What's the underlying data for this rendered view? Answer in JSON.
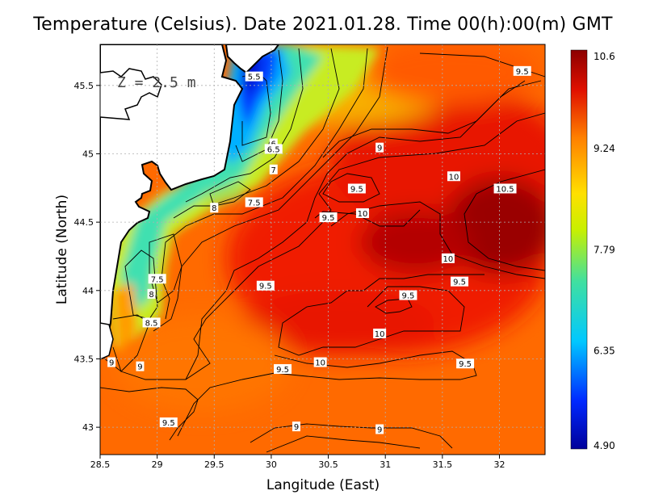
{
  "title": "Temperature (Celsius). Date 2021.01.28. Time 00(h):00(m) GMT",
  "depth_label": "Z = 2.5 m",
  "x_axis_title": "Langitude (East)",
  "y_axis_title": "Latitude (North)",
  "x_ticks": [
    "28.5",
    "29",
    "29.5",
    "30",
    "30.5",
    "31",
    "31.5",
    "32"
  ],
  "y_ticks": [
    "43",
    "43.5",
    "44",
    "44.5",
    "45",
    "45.5"
  ],
  "colorbar": {
    "labels": [
      "10.6",
      "9.24",
      "7.79",
      "6.35",
      "4.90"
    ],
    "min": 4.9,
    "max": 10.6
  },
  "contour_labels": [
    {
      "text": "5.5",
      "lon": 29.85,
      "lat": 45.56
    },
    {
      "text": "6",
      "lon": 30.02,
      "lat": 45.07
    },
    {
      "text": "6.5",
      "lon": 30.02,
      "lat": 45.03
    },
    {
      "text": "7",
      "lon": 30.02,
      "lat": 44.88
    },
    {
      "text": "7.5",
      "lon": 29.85,
      "lat": 44.64
    },
    {
      "text": "8",
      "lon": 29.5,
      "lat": 44.6
    },
    {
      "text": "9",
      "lon": 30.95,
      "lat": 45.04
    },
    {
      "text": "9.5",
      "lon": 30.75,
      "lat": 44.74
    },
    {
      "text": "10",
      "lon": 31.6,
      "lat": 44.83
    },
    {
      "text": "10.5",
      "lon": 32.05,
      "lat": 44.74
    },
    {
      "text": "9.5",
      "lon": 32.2,
      "lat": 45.6
    },
    {
      "text": "10",
      "lon": 30.8,
      "lat": 44.56
    },
    {
      "text": "9.5",
      "lon": 30.5,
      "lat": 44.53
    },
    {
      "text": "10",
      "lon": 31.55,
      "lat": 44.23
    },
    {
      "text": "9.5",
      "lon": 31.65,
      "lat": 44.06
    },
    {
      "text": "9.5",
      "lon": 31.2,
      "lat": 43.96
    },
    {
      "text": "9.5",
      "lon": 29.95,
      "lat": 44.03
    },
    {
      "text": "7.5",
      "lon": 29.0,
      "lat": 44.08
    },
    {
      "text": "8",
      "lon": 28.95,
      "lat": 43.97
    },
    {
      "text": "8.5",
      "lon": 28.95,
      "lat": 43.76
    },
    {
      "text": "10",
      "lon": 30.95,
      "lat": 43.68
    },
    {
      "text": "10",
      "lon": 30.43,
      "lat": 43.47
    },
    {
      "text": "9.5",
      "lon": 30.1,
      "lat": 43.42
    },
    {
      "text": "9.5",
      "lon": 31.7,
      "lat": 43.46
    },
    {
      "text": "9",
      "lon": 28.6,
      "lat": 43.47
    },
    {
      "text": "9",
      "lon": 28.85,
      "lat": 43.44
    },
    {
      "text": "9.5",
      "lon": 29.1,
      "lat": 43.03
    },
    {
      "text": "9",
      "lon": 30.22,
      "lat": 43.0
    },
    {
      "text": "9",
      "lon": 30.95,
      "lat": 42.98
    }
  ],
  "colors": {
    "land": "#ffffff",
    "coast": "#000000",
    "contour": "#000000"
  }
}
